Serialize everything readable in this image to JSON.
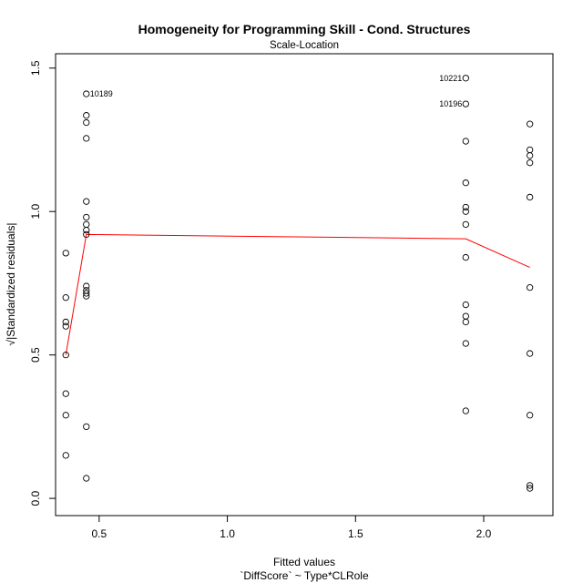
{
  "chart_data": {
    "type": "scatter",
    "title": "Homogeneity for Programming Skill - Cond. Structures",
    "subtitle": "Scale-Location",
    "xlabel": "Fitted values",
    "xlabel2": "`DiffScore` ~ Type*CLRole",
    "ylabel": "√|Standardized residuals|",
    "xlim": [
      0.33,
      2.27
    ],
    "ylim": [
      -0.06,
      1.55
    ],
    "xticks": [
      0.5,
      1.0,
      1.5,
      2.0
    ],
    "xtick_labels": [
      "0.5",
      "1.0",
      "1.5",
      "2.0"
    ],
    "yticks": [
      0.0,
      0.5,
      1.0,
      1.5
    ],
    "ytick_labels": [
      "0.0",
      "0.5",
      "1.0",
      "1.5"
    ],
    "grid": false,
    "points": [
      {
        "x": 0.37,
        "y": 0.855
      },
      {
        "x": 0.37,
        "y": 0.7
      },
      {
        "x": 0.37,
        "y": 0.615
      },
      {
        "x": 0.37,
        "y": 0.6
      },
      {
        "x": 0.37,
        "y": 0.5
      },
      {
        "x": 0.37,
        "y": 0.365
      },
      {
        "x": 0.37,
        "y": 0.29
      },
      {
        "x": 0.37,
        "y": 0.15
      },
      {
        "x": 0.45,
        "y": 1.41
      },
      {
        "x": 0.45,
        "y": 1.335
      },
      {
        "x": 0.45,
        "y": 1.31
      },
      {
        "x": 0.45,
        "y": 1.255
      },
      {
        "x": 0.45,
        "y": 1.035
      },
      {
        "x": 0.45,
        "y": 0.98
      },
      {
        "x": 0.45,
        "y": 0.955
      },
      {
        "x": 0.45,
        "y": 0.935
      },
      {
        "x": 0.45,
        "y": 0.92
      },
      {
        "x": 0.45,
        "y": 0.74
      },
      {
        "x": 0.45,
        "y": 0.725
      },
      {
        "x": 0.45,
        "y": 0.715
      },
      {
        "x": 0.45,
        "y": 0.705
      },
      {
        "x": 0.45,
        "y": 0.25
      },
      {
        "x": 0.45,
        "y": 0.07
      },
      {
        "x": 1.93,
        "y": 1.465
      },
      {
        "x": 1.93,
        "y": 1.375
      },
      {
        "x": 1.93,
        "y": 1.245
      },
      {
        "x": 1.93,
        "y": 1.1
      },
      {
        "x": 1.93,
        "y": 1.015
      },
      {
        "x": 1.93,
        "y": 1.0
      },
      {
        "x": 1.93,
        "y": 0.955
      },
      {
        "x": 1.93,
        "y": 0.84
      },
      {
        "x": 1.93,
        "y": 0.675
      },
      {
        "x": 1.93,
        "y": 0.635
      },
      {
        "x": 1.93,
        "y": 0.615
      },
      {
        "x": 1.93,
        "y": 0.54
      },
      {
        "x": 1.93,
        "y": 0.305
      },
      {
        "x": 2.18,
        "y": 1.305
      },
      {
        "x": 2.18,
        "y": 1.215
      },
      {
        "x": 2.18,
        "y": 1.195
      },
      {
        "x": 2.18,
        "y": 1.17
      },
      {
        "x": 2.18,
        "y": 1.05
      },
      {
        "x": 2.18,
        "y": 0.735
      },
      {
        "x": 2.18,
        "y": 0.505
      },
      {
        "x": 2.18,
        "y": 0.29
      },
      {
        "x": 2.18,
        "y": 0.045
      },
      {
        "x": 2.18,
        "y": 0.035
      }
    ],
    "annotations": [
      {
        "label": "10189",
        "x": 0.45,
        "y": 1.41,
        "side": "right"
      },
      {
        "label": "10221",
        "x": 1.93,
        "y": 1.465,
        "side": "left"
      },
      {
        "label": "10196",
        "x": 1.93,
        "y": 1.375,
        "side": "left"
      }
    ],
    "smoother": {
      "x": [
        0.37,
        0.45,
        1.93,
        2.18
      ],
      "y": [
        0.5,
        0.92,
        0.905,
        0.805
      ],
      "color": "#ff0000"
    },
    "point_color": "#000000"
  }
}
